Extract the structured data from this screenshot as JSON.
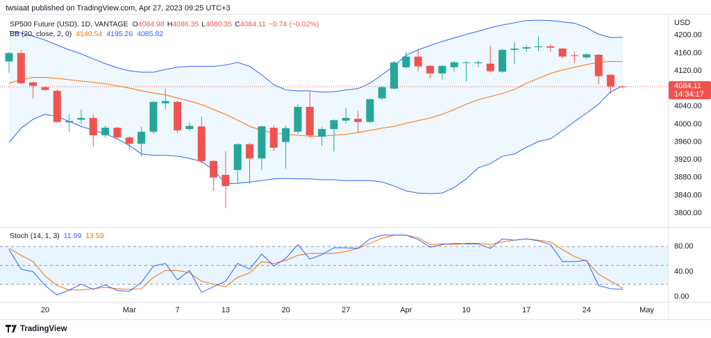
{
  "header": {
    "publisher": "twsiaat published on TradingView.com, Apr 27, 2023 09:25 UTC+3"
  },
  "footer": {
    "brand": "TradingView"
  },
  "chart_data": [
    {
      "type": "candlestick",
      "symbol": "SP500 Future (USD), 1D, VANTAGE",
      "ohlc_labels": [
        "O",
        "H",
        "L",
        "C"
      ],
      "change": "−0.74 (−0.02%)",
      "currency": "USD",
      "countdown": "14:34:17",
      "up_color": "#26a69a",
      "down_color": "#ef5350",
      "categories": [
        null,
        null,
        null,
        "20",
        null,
        null,
        null,
        null,
        null,
        null,
        "Mar",
        null,
        null,
        null,
        "7",
        null,
        null,
        null,
        "13",
        null,
        null,
        null,
        null,
        "20",
        null,
        null,
        null,
        null,
        "27",
        null,
        null,
        null,
        null,
        "Apr",
        null,
        null,
        null,
        null,
        "10",
        null,
        null,
        null,
        null,
        "17",
        null,
        null,
        null,
        null,
        "24",
        null,
        null,
        null,
        null,
        "May"
      ],
      "open": [
        4141,
        4160,
        4094,
        4083,
        4075,
        4004,
        4010,
        4014,
        3975,
        3992,
        3970,
        3956,
        3983,
        4047,
        4050,
        3989,
        3995,
        3917,
        3886,
        3897,
        3955,
        3923,
        3992,
        3960,
        3983,
        4039,
        3972,
        3989,
        4008,
        4012,
        4005,
        4058,
        4080,
        4128,
        4152,
        4131,
        4114,
        4128,
        4138,
        4137,
        4136,
        4118,
        4167,
        4170,
        4173,
        4175,
        4170,
        4155,
        4150,
        4156,
        4111,
        4084.98,
        null,
        null
      ],
      "high": [
        4162,
        4167,
        4096,
        4085,
        4078,
        4022,
        4033,
        4022,
        3997,
        3994,
        3973,
        3994,
        4053,
        4080,
        4053,
        4003,
        4017,
        3920,
        3939,
        3957,
        3958,
        3997,
        3998,
        3997,
        4044,
        4073,
        3994,
        4011,
        4036,
        4030,
        4058,
        4086,
        4142,
        4163,
        4170,
        4133,
        4133,
        4142,
        4141,
        4144,
        4176,
        4170,
        4185,
        4178,
        4197,
        4180,
        4172,
        4163,
        4160,
        4158,
        4113,
        4086.35,
        null,
        null
      ],
      "low": [
        4116,
        4090,
        4058,
        4075,
        4002,
        3983,
        4001,
        3948,
        3970,
        3967,
        3942,
        3928,
        3978,
        4033,
        3980,
        3985,
        3912,
        3850,
        3811,
        3867,
        3866,
        3897,
        3940,
        3900,
        3978,
        3970,
        3951,
        3939,
        4002,
        3980,
        4002,
        4055,
        4078,
        4125,
        4118,
        4103,
        4100,
        4118,
        4096,
        4128,
        4116,
        4115,
        4135,
        4162,
        4164,
        4163,
        4148,
        4138,
        4146,
        4090,
        4069,
        4080.35,
        null,
        null
      ],
      "close": [
        4160,
        4092,
        4086,
        4077,
        4005,
        4007,
        4014,
        3975,
        3992,
        3970,
        3956,
        3983,
        4050,
        4052,
        3986,
        3996,
        3917,
        3880,
        3861,
        3955,
        3923,
        3995,
        3947,
        3991,
        4039,
        3975,
        3989,
        4009,
        4014,
        4005,
        4056,
        4083,
        4139,
        4152,
        4130,
        4114,
        4131,
        4139,
        4139,
        4139,
        4119,
        4167,
        4170,
        4173,
        4175,
        4172,
        4152,
        4154,
        4157,
        4108,
        4084.85,
        4084.11,
        null,
        null
      ],
      "ylim": [
        3772,
        4248
      ],
      "yticks": [
        {
          "value": 3800,
          "label": "3800.00"
        },
        {
          "value": 3840,
          "label": "3840.00"
        },
        {
          "value": 3880,
          "label": "3880.00"
        },
        {
          "value": 3920,
          "label": "3920.00"
        },
        {
          "value": 3960,
          "label": "3960.00"
        },
        {
          "value": 4000,
          "label": "4000.00"
        },
        {
          "value": 4040,
          "label": "4040.00"
        },
        {
          "value": 4080,
          "label": "4080.00"
        },
        {
          "value": 4120,
          "label": "4120.00"
        },
        {
          "value": 4160,
          "label": "4160.00"
        },
        {
          "value": 4200,
          "label": "4200.00"
        }
      ],
      "indicator": {
        "name": "BB (20, close, 2, 0)",
        "band_fill": "rgba(33,150,243,0.07)",
        "series": [
          {
            "color": "#ff6d00",
            "values": [
              4092,
              4100,
              4105,
              4105,
              4103,
              4100,
              4097,
              4094,
              4091,
              4086,
              4081,
              4075,
              4070,
              4066,
              4059,
              4052,
              4044,
              4033,
              4022,
              4009,
              3995,
              3986,
              3980,
              3977,
              3975,
              3973,
              3973,
              3975,
              3977,
              3981,
              3986,
              3991,
              3995,
              4002,
              4008,
              4014,
              4022,
              4033,
              4045,
              4055,
              4062,
              4069,
              4078,
              4092,
              4103,
              4114,
              4122,
              4128,
              4134,
              4139,
              4141,
              4140.54,
              null,
              null
            ]
          },
          {
            "color": "#2962ff",
            "values": [
              4209,
              4205,
              4198,
              4189,
              4178,
              4167,
              4158,
              4147,
              4136,
              4127,
              4120,
              4117,
              4117,
              4123,
              4128,
              4130,
              4130,
              4130,
              4133,
              4139,
              4130,
              4111,
              4089,
              4077,
              4075,
              4075,
              4072,
              4073,
              4077,
              4080,
              4092,
              4111,
              4131,
              4155,
              4167,
              4177,
              4186,
              4194,
              4202,
              4209,
              4217,
              4223,
              4228,
              4233,
              4234,
              4233,
              4230,
              4227,
              4217,
              4202,
              4195,
              4195.26,
              null,
              null
            ]
          },
          {
            "color": "#2962ff",
            "values": [
              3959,
              3991,
              4011,
              4022,
              4017,
              4006,
              3995,
              3986,
              3978,
              3967,
              3952,
              3933,
              3930,
              3930,
              3928,
              3923,
              3916,
              3897,
              3866,
              3867,
              3870,
              3873,
              3877,
              3878,
              3877,
              3877,
              3875,
              3875,
              3873,
              3873,
              3873,
              3870,
              3861,
              3850,
              3845,
              3844,
              3845,
              3858,
              3877,
              3902,
              3911,
              3928,
              3933,
              3948,
              3961,
              3967,
              3986,
              4006,
              4025,
              4045,
              4073,
              4085.82,
              null,
              null
            ]
          }
        ]
      }
    },
    {
      "type": "stoch",
      "name": "Stoch (14, 1, 3)",
      "band_fill": "rgba(33,150,243,0.1)",
      "bands": [
        80,
        50,
        20
      ],
      "ylim": [
        -8,
        111
      ],
      "yticks": [
        {
          "value": 0,
          "label": "0.00"
        },
        {
          "value": 40,
          "label": "40.00"
        },
        {
          "value": 80,
          "label": "80.00"
        }
      ],
      "series": [
        {
          "color": "#2962ff",
          "values": [
            75,
            44,
            40,
            18,
            3,
            11,
            20,
            12,
            19,
            10,
            9,
            23,
            49,
            53,
            27,
            42,
            7,
            16,
            25,
            53,
            44,
            68,
            49,
            61,
            83,
            60,
            67,
            78,
            78,
            77,
            92,
            98,
            98,
            98,
            91,
            79,
            83,
            85,
            84,
            84,
            77,
            92,
            90,
            92,
            89,
            83,
            56,
            56,
            58,
            18,
            13,
            11.99,
            null,
            null
          ]
        },
        {
          "color": "#ff6d00",
          "values": [
            77,
            66,
            56,
            33,
            18,
            11,
            11,
            13,
            15,
            13,
            12,
            13,
            31,
            42,
            42,
            38,
            25,
            20,
            16,
            31,
            38,
            56,
            53,
            58,
            66,
            69,
            69,
            69,
            72,
            77,
            85,
            93,
            98,
            98,
            94,
            83,
            84,
            83,
            85,
            85,
            83,
            87,
            90,
            92,
            90,
            87,
            75,
            64,
            57,
            36,
            25,
            13.59,
            null,
            null
          ]
        }
      ]
    }
  ]
}
